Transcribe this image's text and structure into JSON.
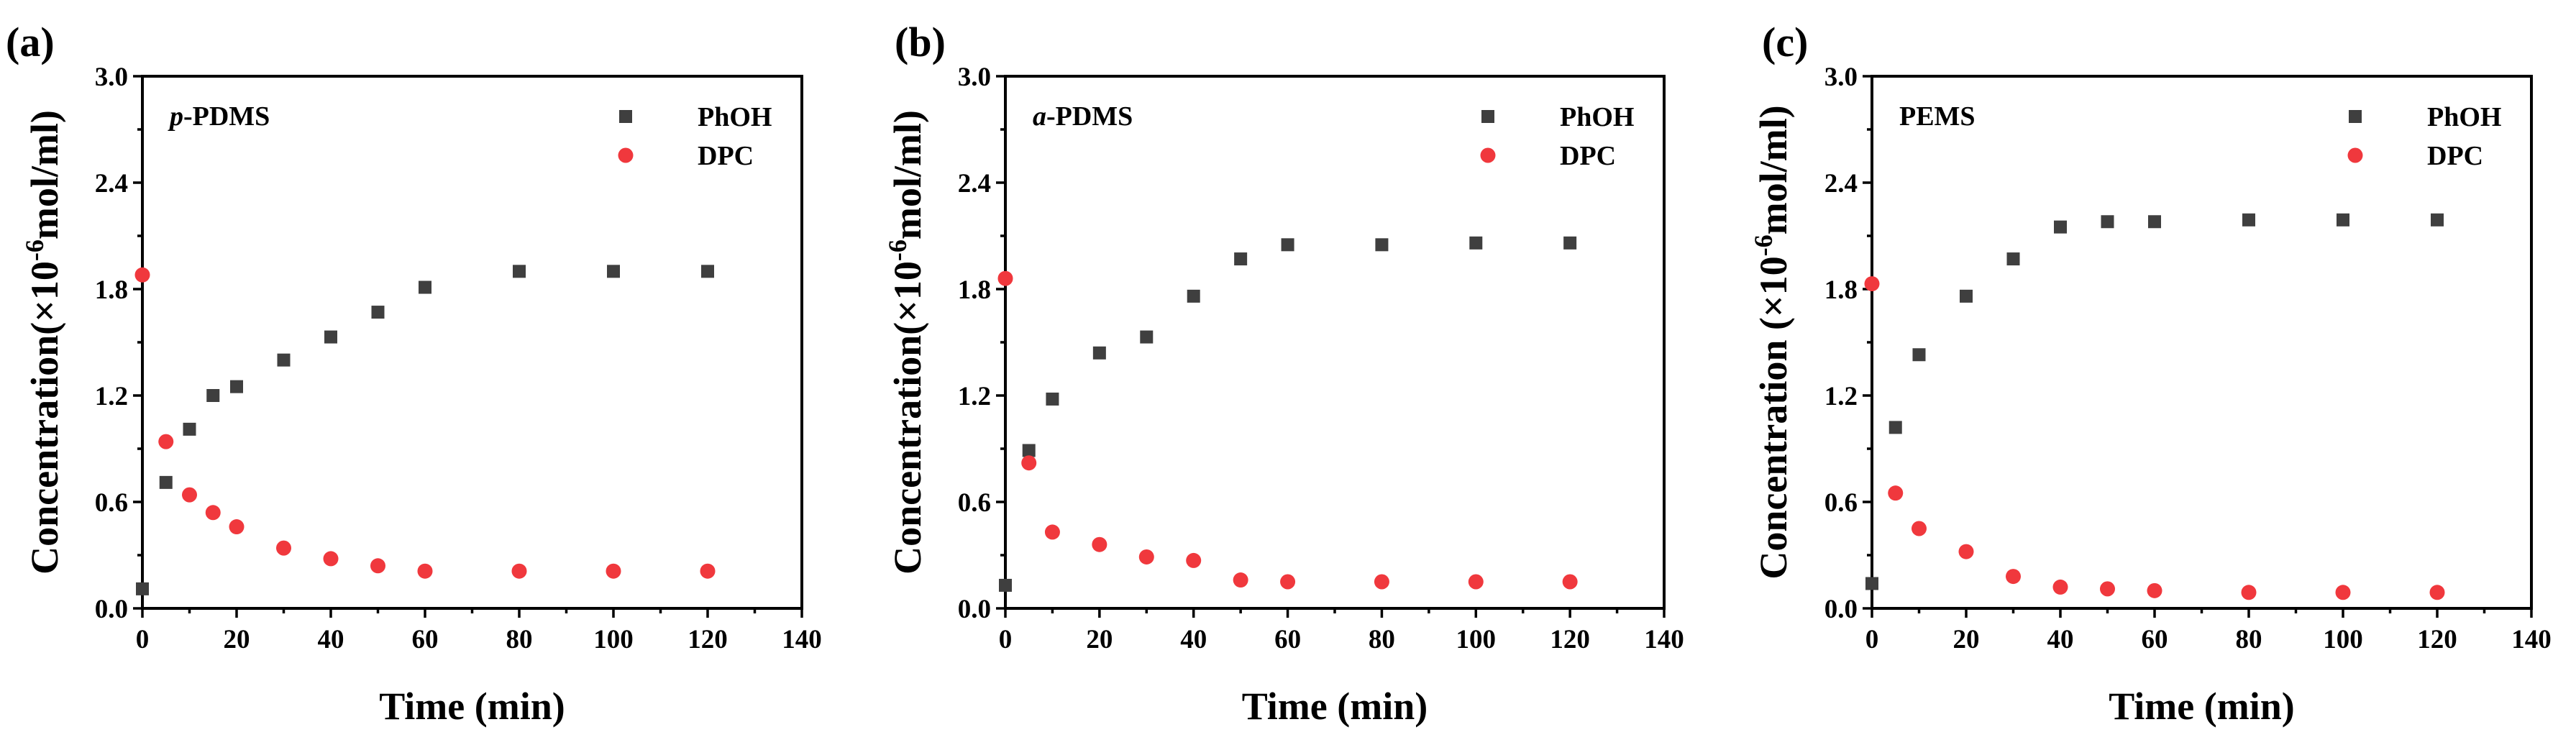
{
  "chart_data": [
    {
      "type": "scatter",
      "panel_label": "(a)",
      "sample_prefix": "p",
      "sample_rest": "-PDMS",
      "xlabel": "Time (min)",
      "ylabel_main": "Concentration(×10",
      "ylabel_exp": "-6",
      "ylabel_tail": "mol/ml)",
      "xlim": [
        0,
        140
      ],
      "ylim": [
        0,
        3.0
      ],
      "x_ticks": [
        "0",
        "20",
        "40",
        "60",
        "80",
        "100",
        "120",
        "140"
      ],
      "y_ticks": [
        "0.0",
        "0.6",
        "1.2",
        "1.8",
        "2.4",
        "3.0"
      ],
      "legend_position": "top-right",
      "series": [
        {
          "name": "PhOH",
          "marker": "square",
          "color": "#3f3f3f",
          "x": [
            0,
            5,
            10,
            15,
            20,
            30,
            40,
            50,
            60,
            80,
            100,
            120
          ],
          "y": [
            0.11,
            0.71,
            1.01,
            1.2,
            1.25,
            1.4,
            1.53,
            1.67,
            1.81,
            1.9,
            1.9,
            1.9
          ]
        },
        {
          "name": "DPC",
          "marker": "circle",
          "color": "#f0383d",
          "x": [
            0,
            5,
            10,
            15,
            20,
            30,
            40,
            50,
            60,
            80,
            100,
            120
          ],
          "y": [
            1.88,
            0.94,
            0.64,
            0.54,
            0.46,
            0.34,
            0.28,
            0.24,
            0.21,
            0.21,
            0.21,
            0.21
          ]
        }
      ]
    },
    {
      "type": "scatter",
      "panel_label": "(b)",
      "sample_prefix": "a",
      "sample_rest": "-PDMS",
      "xlabel": "Time (min)",
      "ylabel_main": "Concentration(×10",
      "ylabel_exp": "-6",
      "ylabel_tail": "mol/ml)",
      "xlim": [
        0,
        140
      ],
      "ylim": [
        0,
        3.0
      ],
      "x_ticks": [
        "0",
        "20",
        "40",
        "60",
        "80",
        "100",
        "120",
        "140"
      ],
      "y_ticks": [
        "0.0",
        "0.6",
        "1.2",
        "1.8",
        "2.4",
        "3.0"
      ],
      "legend_position": "top-right",
      "series": [
        {
          "name": "PhOH",
          "marker": "square",
          "color": "#3f3f3f",
          "x": [
            0,
            5,
            10,
            20,
            30,
            40,
            50,
            60,
            80,
            100,
            120
          ],
          "y": [
            0.13,
            0.89,
            1.18,
            1.44,
            1.53,
            1.76,
            1.97,
            2.05,
            2.05,
            2.06,
            2.06
          ]
        },
        {
          "name": "DPC",
          "marker": "circle",
          "color": "#f0383d",
          "x": [
            0,
            5,
            10,
            20,
            30,
            40,
            50,
            60,
            80,
            100,
            120
          ],
          "y": [
            1.86,
            0.82,
            0.43,
            0.36,
            0.29,
            0.27,
            0.16,
            0.15,
            0.15,
            0.15,
            0.15
          ]
        }
      ]
    },
    {
      "type": "scatter",
      "panel_label": "(c)",
      "sample_prefix": "",
      "sample_rest": "PEMS",
      "xlabel": "Time (min)",
      "ylabel_main": "Concentration (×10",
      "ylabel_exp": "-6",
      "ylabel_tail": "mol/ml)",
      "xlim": [
        0,
        140
      ],
      "ylim": [
        0,
        3.0
      ],
      "x_ticks": [
        "0",
        "20",
        "40",
        "60",
        "80",
        "100",
        "120",
        "140"
      ],
      "y_ticks": [
        "0.0",
        "0.6",
        "1.2",
        "1.8",
        "2.4",
        "3.0"
      ],
      "legend_position": "top-right",
      "series": [
        {
          "name": "PhOH",
          "marker": "square",
          "color": "#3f3f3f",
          "x": [
            0,
            5,
            10,
            20,
            30,
            40,
            50,
            60,
            80,
            100,
            120
          ],
          "y": [
            0.14,
            1.02,
            1.43,
            1.76,
            1.97,
            2.15,
            2.18,
            2.18,
            2.19,
            2.19,
            2.19
          ]
        },
        {
          "name": "DPC",
          "marker": "circle",
          "color": "#f0383d",
          "x": [
            0,
            5,
            10,
            20,
            30,
            40,
            50,
            60,
            80,
            100,
            120
          ],
          "y": [
            1.83,
            0.65,
            0.45,
            0.32,
            0.18,
            0.12,
            0.11,
            0.1,
            0.09,
            0.09,
            0.09
          ]
        }
      ]
    }
  ]
}
